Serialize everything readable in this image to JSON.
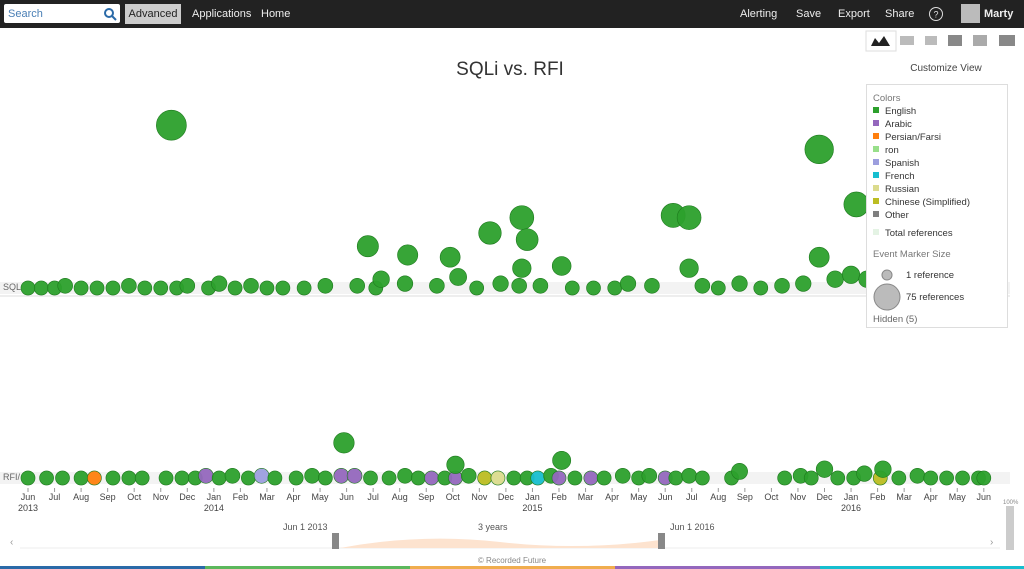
{
  "toolbar": {
    "search": "Search",
    "advanced": "Advanced",
    "left_menu": [
      "Applications",
      "Home"
    ],
    "right_menu": [
      "Alerting",
      "Save",
      "Export",
      "Share"
    ],
    "user": "Marty"
  },
  "title": "SQLi vs. RFI",
  "customize": "Customize View",
  "legend": {
    "heading": "Colors",
    "items": [
      {
        "label": "English",
        "color": "#2ca02c"
      },
      {
        "label": "Arabic",
        "color": "#9467bd"
      },
      {
        "label": "Persian/Farsi",
        "color": "#ff7f0e"
      },
      {
        "label": "ron",
        "color": "#98df8a"
      },
      {
        "label": "Spanish",
        "color": "#9c9ede"
      },
      {
        "label": "French",
        "color": "#17becf"
      },
      {
        "label": "Russian",
        "color": "#dbdb8d"
      },
      {
        "label": "Chinese (Simplified)",
        "color": "#bcbd22"
      },
      {
        "label": "Other",
        "color": "#7f7f7f"
      }
    ],
    "total": "Total references",
    "marker_heading": "Event Marker Size",
    "marker_sizes": [
      {
        "label": "1 reference",
        "value": 1
      },
      {
        "label": "75 references",
        "value": 75
      }
    ],
    "hidden": "Hidden (5)"
  },
  "timeline": {
    "months": [
      "Jun",
      "Jul",
      "Aug",
      "Sep",
      "Oct",
      "Nov",
      "Dec",
      "Jan",
      "Feb",
      "Mar",
      "Apr",
      "May",
      "Jun",
      "Jul",
      "Aug",
      "Sep",
      "Oct",
      "Nov",
      "Dec",
      "Jan",
      "Feb",
      "Mar",
      "Apr",
      "May",
      "Jun",
      "Jul",
      "Aug",
      "Sep",
      "Oct",
      "Nov",
      "Dec",
      "Jan",
      "Feb",
      "Mar",
      "Apr",
      "May",
      "Jun"
    ],
    "years": [
      "2013",
      "2014",
      "2015",
      "2016"
    ],
    "series": [
      {
        "name": "SQL",
        "events": [
          [
            0,
            1,
            0
          ],
          [
            0.5,
            1,
            0
          ],
          [
            1,
            1,
            0
          ],
          [
            1.4,
            2,
            0
          ],
          [
            2,
            1,
            0
          ],
          [
            2.6,
            1,
            0
          ],
          [
            3.2,
            1,
            0
          ],
          [
            3.8,
            2,
            0
          ],
          [
            4.4,
            1,
            0
          ],
          [
            5,
            1,
            0
          ],
          [
            5.6,
            1,
            0
          ],
          [
            6,
            2,
            0
          ],
          [
            6.8,
            1,
            0
          ],
          [
            7.2,
            3,
            0
          ],
          [
            7.8,
            1,
            0
          ],
          [
            8.4,
            2,
            0
          ],
          [
            9,
            1,
            0
          ],
          [
            9.6,
            1,
            0
          ],
          [
            10.4,
            1,
            0
          ],
          [
            11.2,
            2,
            0
          ],
          [
            12.4,
            2,
            0
          ],
          [
            13.1,
            1,
            0
          ],
          [
            12.8,
            20,
            0
          ],
          [
            13.3,
            5,
            0
          ],
          [
            14.2,
            3,
            0
          ],
          [
            14.3,
            16,
            0
          ],
          [
            15.4,
            2,
            0
          ],
          [
            15.9,
            15,
            0
          ],
          [
            16.2,
            6,
            0
          ],
          [
            16.9,
            1,
            0
          ],
          [
            17.4,
            26,
            0
          ],
          [
            17.8,
            3,
            0
          ],
          [
            18.5,
            2,
            0
          ],
          [
            18.6,
            33,
            0
          ],
          [
            18.6,
            10,
            0
          ],
          [
            18.8,
            23,
            0
          ],
          [
            19.3,
            2,
            0
          ],
          [
            20.1,
            11,
            0
          ],
          [
            20.5,
            1,
            0
          ],
          [
            21.3,
            1,
            0
          ],
          [
            22.1,
            1,
            0
          ],
          [
            22.6,
            3,
            0
          ],
          [
            23.5,
            2,
            0
          ],
          [
            24.3,
            34,
            0
          ],
          [
            24.9,
            33,
            0
          ],
          [
            24.9,
            10,
            0
          ],
          [
            25.4,
            2,
            0
          ],
          [
            26,
            1,
            0
          ],
          [
            26.8,
            3,
            0
          ],
          [
            27.6,
            1,
            0
          ],
          [
            28.4,
            2,
            0
          ],
          [
            29.2,
            3,
            0
          ],
          [
            29.8,
            64,
            0
          ],
          [
            29.8,
            15,
            0
          ],
          [
            30.4,
            5,
            0
          ],
          [
            31,
            7,
            0
          ],
          [
            31.2,
            39,
            0
          ],
          [
            31.6,
            5,
            0
          ],
          [
            32.2,
            2,
            0
          ],
          [
            33,
            1,
            0
          ],
          [
            34,
            1,
            0
          ],
          [
            35,
            1,
            0
          ],
          [
            36,
            1,
            0
          ],
          [
            5.4,
            75,
            0
          ]
        ]
      },
      {
        "name": "RFI/",
        "events": [
          [
            0,
            1,
            0
          ],
          [
            0.7,
            1,
            0
          ],
          [
            1.3,
            1,
            0
          ],
          [
            2,
            1,
            0
          ],
          [
            2.5,
            1,
            2
          ],
          [
            3.2,
            1,
            0
          ],
          [
            3.8,
            1,
            0
          ],
          [
            4.3,
            1,
            0
          ],
          [
            5.2,
            1,
            0
          ],
          [
            5.8,
            1,
            0
          ],
          [
            6.3,
            1,
            0
          ],
          [
            6.7,
            2,
            1
          ],
          [
            7.2,
            1,
            0
          ],
          [
            7.7,
            2,
            0
          ],
          [
            8.3,
            1,
            0
          ],
          [
            8.8,
            2,
            4
          ],
          [
            9.3,
            1,
            0
          ],
          [
            10.1,
            1,
            0
          ],
          [
            10.7,
            2,
            0
          ],
          [
            11.2,
            1,
            0
          ],
          [
            11.8,
            2,
            1
          ],
          [
            11.9,
            17,
            0
          ],
          [
            12.3,
            2,
            1
          ],
          [
            12.9,
            1,
            0
          ],
          [
            13.6,
            1,
            0
          ],
          [
            14.2,
            2,
            0
          ],
          [
            14.7,
            1,
            0
          ],
          [
            15.2,
            1,
            1
          ],
          [
            15.7,
            1,
            0
          ],
          [
            16.1,
            1,
            1
          ],
          [
            16.1,
            7,
            0
          ],
          [
            16.6,
            2,
            0
          ],
          [
            17.2,
            1,
            7
          ],
          [
            17.7,
            1,
            6
          ],
          [
            18.3,
            1,
            0
          ],
          [
            18.8,
            1,
            0
          ],
          [
            19.2,
            1,
            5
          ],
          [
            19.7,
            2,
            0
          ],
          [
            20,
            1,
            1
          ],
          [
            20.1,
            9,
            0
          ],
          [
            20.6,
            1,
            0
          ],
          [
            21.2,
            1,
            1
          ],
          [
            21.7,
            1,
            0
          ],
          [
            22.4,
            2,
            0
          ],
          [
            23,
            1,
            0
          ],
          [
            23.4,
            2,
            0
          ],
          [
            24,
            1,
            1
          ],
          [
            24.4,
            1,
            0
          ],
          [
            24.9,
            2,
            0
          ],
          [
            25.4,
            1,
            0
          ],
          [
            26.5,
            1,
            0
          ],
          [
            26.8,
            4,
            0
          ],
          [
            28.5,
            1,
            0
          ],
          [
            29.1,
            2,
            0
          ],
          [
            29.5,
            1,
            0
          ],
          [
            30,
            5,
            0
          ],
          [
            30.5,
            1,
            0
          ],
          [
            31.1,
            1,
            0
          ],
          [
            31.5,
            3,
            0
          ],
          [
            32.1,
            1,
            7
          ],
          [
            32.2,
            5,
            0
          ],
          [
            32.8,
            1,
            0
          ],
          [
            33.5,
            2,
            0
          ],
          [
            34,
            1,
            0
          ],
          [
            34.6,
            1,
            0
          ],
          [
            35.2,
            1,
            0
          ],
          [
            35.8,
            1,
            0
          ],
          [
            36,
            1,
            0
          ]
        ]
      }
    ]
  },
  "range": {
    "start": "Jun 1 2013",
    "span": "3 years",
    "end": "Jun 1 2016",
    "zoom": "100%"
  },
  "footer": "© Recorded Future"
}
